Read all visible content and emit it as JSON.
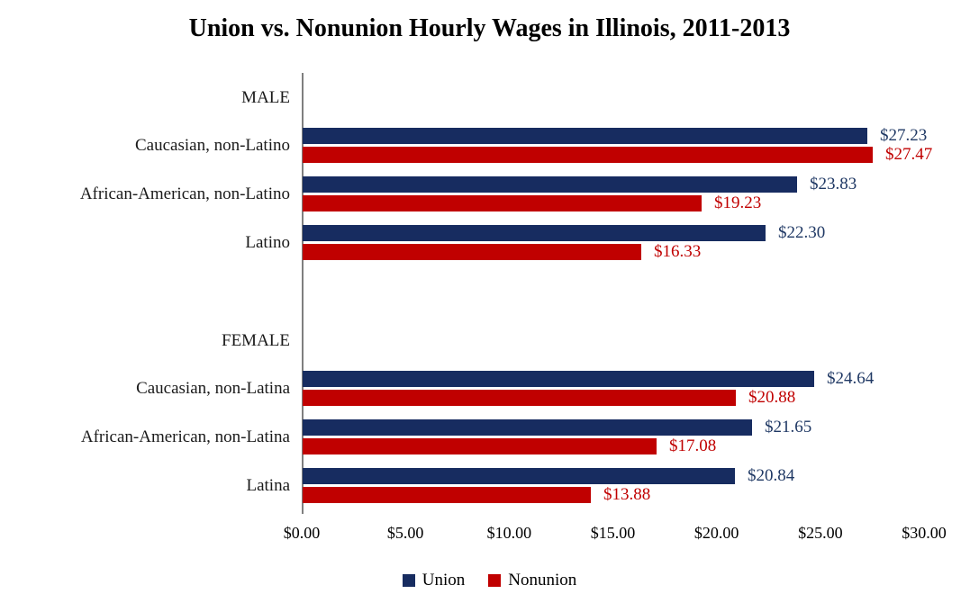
{
  "title": "Union vs. Nonunion Hourly Wages in Illinois, 2011-2013",
  "colors": {
    "union": "#172c60",
    "nonunion": "#c00000",
    "union_text": "#1f3864",
    "nonunion_text": "#c00000",
    "axis_line": "#7f7f7f",
    "category_text": "#1a1a1a",
    "tick_text": "#000000"
  },
  "chart_data": {
    "type": "bar",
    "orientation": "horizontal",
    "title": "Union vs. Nonunion Hourly Wages in Illinois, 2011-2013",
    "xlabel": "",
    "ylabel": "",
    "xlim": [
      0,
      30
    ],
    "grid": false,
    "x_ticks": [
      "$0.00",
      "$5.00",
      "$10.00",
      "$15.00",
      "$20.00",
      "$25.00",
      "$30.00"
    ],
    "series": [
      {
        "name": "Union",
        "color": "#172c60"
      },
      {
        "name": "Nonunion",
        "color": "#c00000"
      }
    ],
    "groups": [
      {
        "header": "MALE",
        "rows": [
          {
            "label": "Caucasian, non-Latino",
            "union": 27.23,
            "nonunion": 27.47,
            "union_label": "$27.23",
            "nonunion_label": "$27.47"
          },
          {
            "label": "African-American, non-Latino",
            "union": 23.83,
            "nonunion": 19.23,
            "union_label": "$23.83",
            "nonunion_label": "$19.23"
          },
          {
            "label": "Latino",
            "union": 22.3,
            "nonunion": 16.33,
            "union_label": "$22.30",
            "nonunion_label": "$16.33"
          }
        ]
      },
      {
        "header": "FEMALE",
        "rows": [
          {
            "label": "Caucasian, non-Latina",
            "union": 24.64,
            "nonunion": 20.88,
            "union_label": "$24.64",
            "nonunion_label": "$20.88"
          },
          {
            "label": "African-American, non-Latina",
            "union": 21.65,
            "nonunion": 17.08,
            "union_label": "$21.65",
            "nonunion_label": "$17.08"
          },
          {
            "label": "Latina",
            "union": 20.84,
            "nonunion": 13.88,
            "union_label": "$20.84",
            "nonunion_label": "$13.88"
          }
        ]
      }
    ],
    "legend": {
      "position": "bottom",
      "entries": [
        "Union",
        "Nonunion"
      ]
    }
  }
}
